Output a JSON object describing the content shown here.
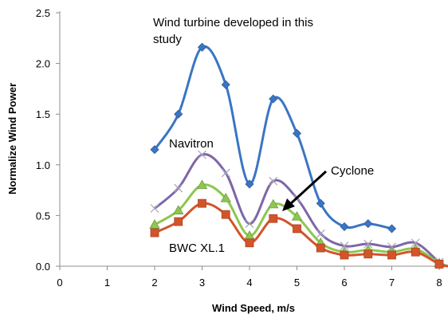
{
  "chart_data": {
    "type": "line",
    "xlabel": "Wind Speed, m/s",
    "ylabel": "Normalize Wind Power",
    "xlim": [
      0,
      8.2
    ],
    "ylim": [
      0,
      2.5
    ],
    "x_ticks": [
      "0",
      "1",
      "2",
      "3",
      "4",
      "5",
      "6",
      "7",
      "8"
    ],
    "y_ticks": [
      "0.0",
      "0.5",
      "1.0",
      "1.5",
      "2.0",
      "2.5"
    ],
    "grid": false,
    "legend": "none",
    "series": [
      {
        "marker": "diamond",
        "color": "#3a75c4",
        "points": [
          [
            2,
            1.15
          ],
          [
            2.5,
            1.5
          ],
          [
            3,
            2.16
          ],
          [
            3.5,
            1.79
          ],
          [
            4,
            0.81
          ],
          [
            4.5,
            1.65
          ],
          [
            5,
            1.31
          ],
          [
            5.5,
            0.62
          ],
          [
            6,
            0.39
          ],
          [
            6.5,
            0.42
          ],
          [
            7,
            0.37
          ]
        ]
      },
      {
        "marker": "x",
        "color": "#7e66a8",
        "points": [
          [
            2,
            0.57
          ],
          [
            2.5,
            0.77
          ],
          [
            3,
            1.1
          ],
          [
            3.5,
            0.92
          ],
          [
            4,
            0.42
          ],
          [
            4.5,
            0.84
          ],
          [
            5,
            0.67
          ],
          [
            5.5,
            0.32
          ],
          [
            6,
            0.2
          ],
          [
            6.5,
            0.22
          ],
          [
            7,
            0.19
          ],
          [
            7.5,
            0.23
          ],
          [
            8,
            0.04
          ]
        ]
      },
      {
        "marker": "triangle",
        "color": "#8ec651",
        "points": [
          [
            2,
            0.41
          ],
          [
            2.5,
            0.55
          ],
          [
            3,
            0.8
          ],
          [
            3.5,
            0.67
          ],
          [
            4,
            0.3
          ],
          [
            4.5,
            0.61
          ],
          [
            5,
            0.49
          ],
          [
            5.5,
            0.23
          ],
          [
            6,
            0.14
          ],
          [
            6.5,
            0.16
          ],
          [
            7,
            0.14
          ],
          [
            7.5,
            0.17
          ],
          [
            8,
            0.03
          ]
        ]
      },
      {
        "marker": "square",
        "color": "#d4542a",
        "points": [
          [
            2,
            0.33
          ],
          [
            2.5,
            0.44
          ],
          [
            3,
            0.62
          ],
          [
            3.5,
            0.51
          ],
          [
            4,
            0.23
          ],
          [
            4.5,
            0.47
          ],
          [
            5,
            0.37
          ],
          [
            5.5,
            0.18
          ],
          [
            6,
            0.11
          ],
          [
            6.5,
            0.12
          ],
          [
            7,
            0.11
          ],
          [
            7.5,
            0.14
          ],
          [
            8,
            0.02
          ]
        ]
      }
    ],
    "annotations": [
      {
        "id": "study",
        "lines": [
          "Wind turbine developed in this",
          "study"
        ]
      },
      {
        "id": "navitron",
        "lines": [
          "Navitron"
        ]
      },
      {
        "id": "cyclone",
        "lines": [
          "Cyclone"
        ]
      },
      {
        "id": "bwc",
        "lines": [
          "BWC XL.1"
        ]
      }
    ]
  }
}
